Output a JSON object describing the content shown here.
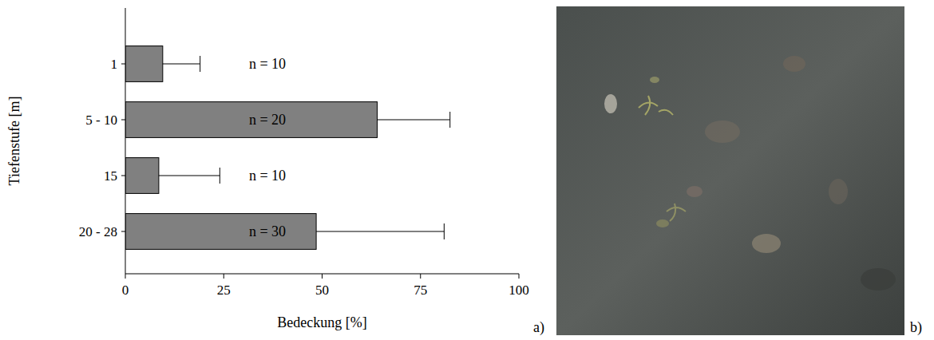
{
  "chart_data": {
    "type": "bar",
    "orientation": "horizontal",
    "categories": [
      "1",
      "5 - 10",
      "15",
      "20 - 28"
    ],
    "values": [
      9.5,
      64,
      8.5,
      48.5
    ],
    "errors": [
      9.5,
      18.5,
      15.5,
      32.5
    ],
    "annotations": [
      "n = 10",
      "n = 20",
      "n = 10",
      "n = 30"
    ],
    "color": "#808080",
    "x_label": "Bedeckung [%]",
    "y_label": "Tiefenstufe [m]",
    "xlim": [
      0,
      100
    ],
    "xticks": [
      0,
      25,
      50,
      75,
      100
    ],
    "grid": false
  },
  "panel_labels": [
    "a)",
    "b)"
  ]
}
